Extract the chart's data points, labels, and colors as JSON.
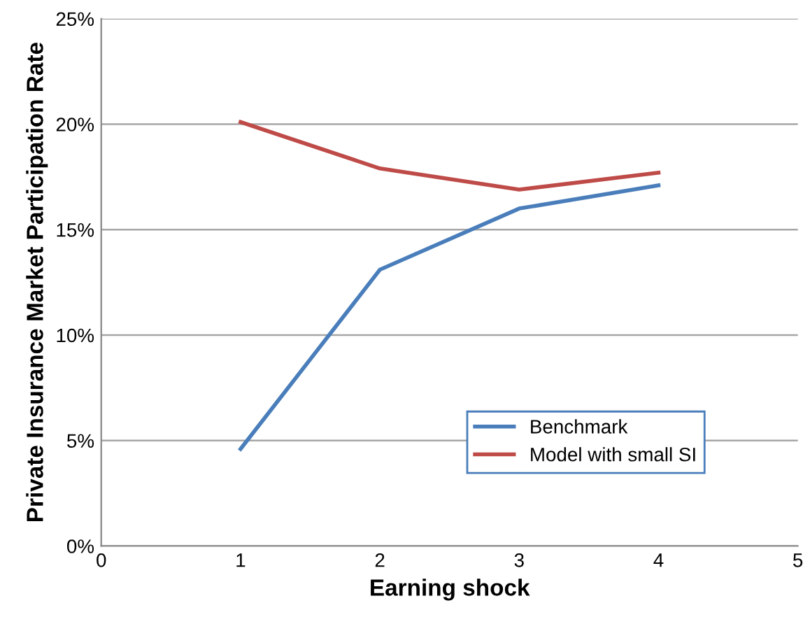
{
  "chart_data": {
    "type": "line",
    "xlabel": "Earning shock",
    "ylabel": "Private Insurance Market Participation Rate",
    "x": [
      1,
      2,
      3,
      4
    ],
    "series": [
      {
        "name": "Benchmark",
        "color": "#4a7ebb",
        "values": [
          4.6,
          13.1,
          16.0,
          17.1
        ]
      },
      {
        "name": "Model with small SI",
        "color": "#be4b48",
        "values": [
          20.1,
          17.9,
          16.9,
          17.7
        ]
      }
    ],
    "xlim": [
      0,
      5
    ],
    "xticks": [
      0,
      1,
      2,
      3,
      4,
      5
    ],
    "ylim": [
      0,
      25
    ],
    "yticks": [
      {
        "value": 0,
        "label": "0%"
      },
      {
        "value": 5,
        "label": "5%"
      },
      {
        "value": 10,
        "label": "10%"
      },
      {
        "value": 15,
        "label": "15%"
      },
      {
        "value": 20,
        "label": "20%"
      },
      {
        "value": 25,
        "label": "25%"
      }
    ],
    "grid": "y",
    "legend": "bottom right",
    "marker": "none",
    "line_style": "solid"
  }
}
